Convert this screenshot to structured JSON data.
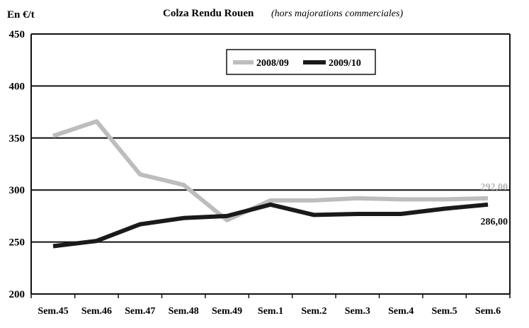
{
  "chart_data": {
    "type": "line",
    "title": "Colza Rendu Rouen",
    "subtitle": "(hors majorations commerciales)",
    "ylabel": "En €/t",
    "xlabel": "",
    "categories": [
      "Sem.45",
      "Sem.46",
      "Sem.47",
      "Sem.48",
      "Sem.49",
      "Sem.1",
      "Sem.2",
      "Sem.3",
      "Sem.4",
      "Sem.5",
      "Sem.6"
    ],
    "ylim": [
      200,
      450
    ],
    "yticks": [
      200,
      250,
      300,
      350,
      400,
      450
    ],
    "grid": true,
    "legend_position": "top-center",
    "series": [
      {
        "name": "2008/09",
        "color": "#bdbdbd",
        "values": [
          352,
          366,
          315,
          305,
          271,
          290,
          290,
          292,
          291,
          291,
          292
        ],
        "end_label": "292,00"
      },
      {
        "name": "2009/10",
        "color": "#1a1a1a",
        "values": [
          246,
          251,
          267,
          273,
          275,
          286,
          276,
          277,
          277,
          282,
          286
        ],
        "end_label": "286,00"
      }
    ]
  }
}
